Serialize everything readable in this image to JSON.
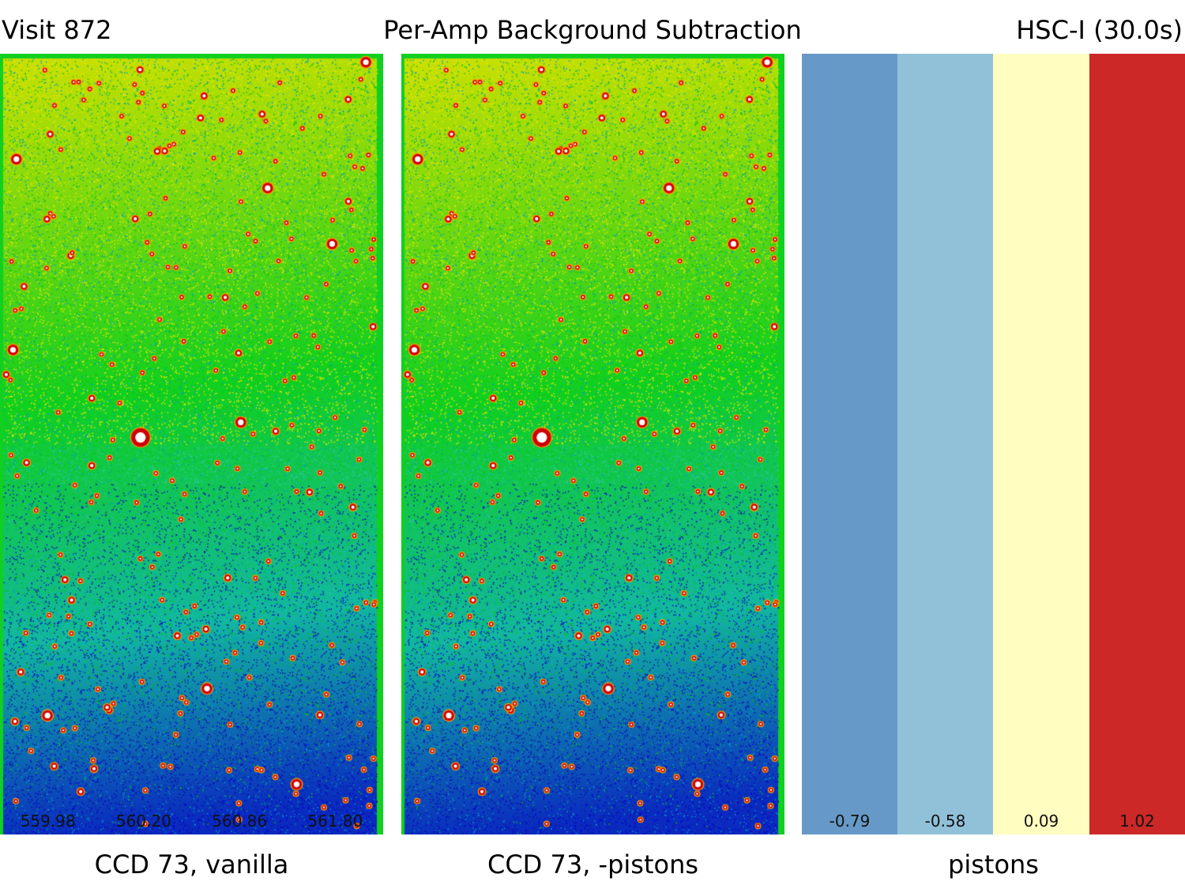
{
  "header": {
    "visit": "Visit 872",
    "title": "Per-Amp Background Subtraction",
    "filter": "HSC-I (30.0s)"
  },
  "panels": [
    {
      "caption": "CCD 73, vanilla",
      "amp_values": [
        "559.98",
        "560.20",
        "560.86",
        "561.80"
      ]
    },
    {
      "caption": "CCD 73, -pistons",
      "amp_values": []
    },
    {
      "caption": "pistons",
      "pistons": [
        {
          "value": "-0.79",
          "color": "#6699c7"
        },
        {
          "value": "-0.58",
          "color": "#91c1d9"
        },
        {
          "value": "0.09",
          "color": "#fffdc0"
        },
        {
          "value": "1.02",
          "color": "#cc2828"
        }
      ]
    }
  ],
  "colors": {
    "field_top": "#cfe000",
    "field_mid": "#10d020",
    "field_bottom": "#0a2ac0",
    "frame": "#10d020",
    "star_halo": "#d00000",
    "star_core": "#ffffff"
  }
}
